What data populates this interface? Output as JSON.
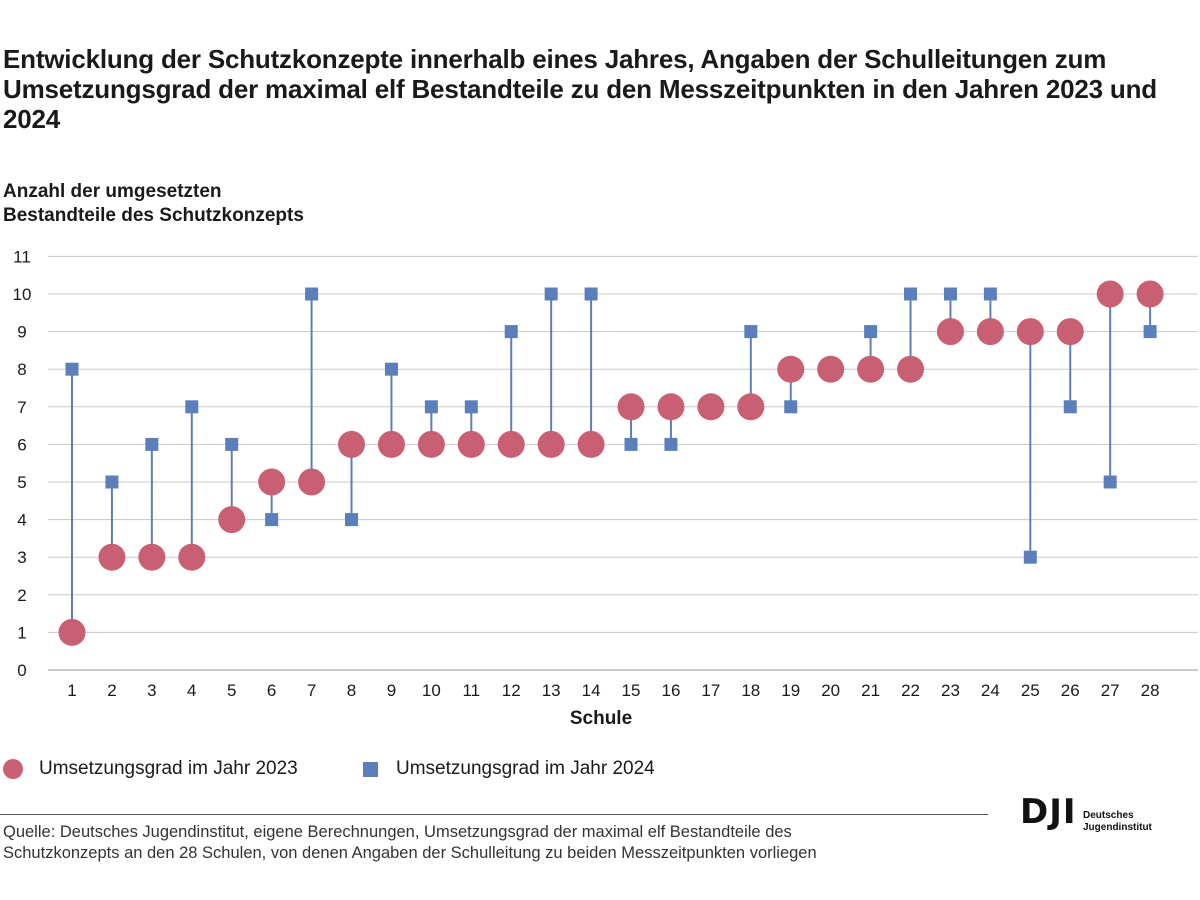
{
  "title": "Entwicklung der Schutzkonzepte innerhalb eines Jahres, Angaben der Schulleitungen zum Umsetzungsgrad der maximal elf Bestandteile zu den Messzeitpunkten in den Jahren 2023 und 2024",
  "legend": {
    "label_2023": "Umsetzungsgrad im Jahr 2023",
    "label_2024": "Umsetzungsgrad im Jahr 2024"
  },
  "source": {
    "line1": "Quelle: Deutsches Jugendinstitut, eigene Berechnungen, Umsetzungsgrad der maximal elf Bestandteile des",
    "line2": "Schutzkonzepts an den 28 Schulen, von denen Angaben der Schulleitung zu beiden Messzeitpunkten vorliegen"
  },
  "logo": {
    "mark": "DJI",
    "line1": "Deutsches",
    "line2": "Jugendinstitut"
  },
  "colors": {
    "series_2023": "#c95f72",
    "series_2024": "#5b7fba",
    "gridline": "#c8c8c8",
    "connector": "#5b7fba"
  },
  "chart_data": {
    "type": "scatter",
    "title": "Entwicklung der Schutzkonzepte innerhalb eines Jahres, Angaben der Schulleitungen zum Umsetzungsgrad der maximal elf Bestandteile zu den Messzeitpunkten in den Jahren 2023 und 2024",
    "xlabel": "Schule",
    "ylabel_lines": [
      "Anzahl der umgesetzten",
      "Bestandteile des Schutzkonzepts"
    ],
    "categories": [
      "1",
      "2",
      "3",
      "4",
      "5",
      "6",
      "7",
      "8",
      "9",
      "10",
      "11",
      "12",
      "13",
      "14",
      "15",
      "16",
      "17",
      "18",
      "19",
      "20",
      "21",
      "22",
      "23",
      "24",
      "25",
      "26",
      "27",
      "28"
    ],
    "ylim": [
      0,
      11
    ],
    "yticks": [
      0,
      1,
      2,
      3,
      4,
      5,
      6,
      7,
      8,
      9,
      10,
      11
    ],
    "grid": true,
    "legend_position": "bottom-left",
    "series": [
      {
        "name": "Umsetzungsgrad im Jahr 2023",
        "marker": "circle",
        "values": [
          1,
          3,
          3,
          3,
          4,
          5,
          5,
          6,
          6,
          6,
          6,
          6,
          6,
          6,
          7,
          7,
          7,
          7,
          8,
          8,
          8,
          8,
          9,
          9,
          9,
          9,
          10,
          10
        ]
      },
      {
        "name": "Umsetzungsgrad im Jahr 2024",
        "marker": "square",
        "values": [
          8,
          5,
          6,
          7,
          6,
          4,
          10,
          4,
          8,
          7,
          7,
          9,
          10,
          10,
          6,
          6,
          7,
          9,
          7,
          8,
          9,
          10,
          10,
          10,
          3,
          7,
          5,
          9
        ]
      }
    ]
  }
}
